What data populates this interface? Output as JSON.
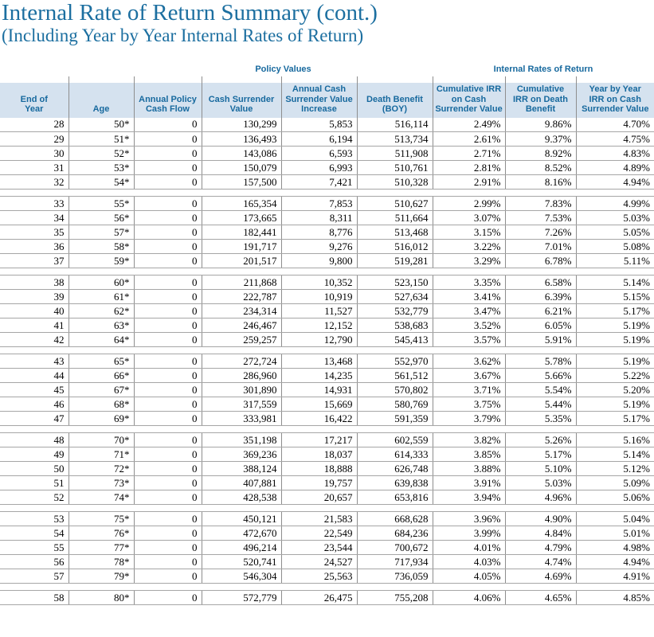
{
  "page": {
    "title": "Internal Rate of Return Summary (cont.)",
    "subtitle": "(Including Year by Year Internal Rates of Return)"
  },
  "colors": {
    "accent_blue": "#1c6fa0",
    "header_text_blue": "#17699e",
    "header_background": "#d5e2ef",
    "grid_line_gray": "#a6a6a6"
  },
  "table": {
    "group_headers": {
      "policy_values": "Policy Values",
      "internal_rates_of_return": "Internal Rates of Return"
    },
    "columns": [
      "End of\nYear",
      "Age",
      "Annual Policy\nCash Flow",
      "Cash Surrender\nValue",
      "Annual Cash\nSurrender Value\nIncrease",
      "Death Benefit\n(BOY)",
      "Cumulative IRR\non Cash\nSurrender Value",
      "Cumulative\nIRR on Death\nBenefit",
      "Year by Year\nIRR on Cash\nSurrender Value"
    ],
    "groups": [
      {
        "rows": [
          [
            "28",
            "50*",
            "0",
            "130,299",
            "5,853",
            "516,114",
            "2.49%",
            "9.86%",
            "4.70%"
          ],
          [
            "29",
            "51*",
            "0",
            "136,493",
            "6,194",
            "513,734",
            "2.61%",
            "9.37%",
            "4.75%"
          ],
          [
            "30",
            "52*",
            "0",
            "143,086",
            "6,593",
            "511,908",
            "2.71%",
            "8.92%",
            "4.83%"
          ],
          [
            "31",
            "53*",
            "0",
            "150,079",
            "6,993",
            "510,761",
            "2.81%",
            "8.52%",
            "4.89%"
          ],
          [
            "32",
            "54*",
            "0",
            "157,500",
            "7,421",
            "510,328",
            "2.91%",
            "8.16%",
            "4.94%"
          ]
        ]
      },
      {
        "rows": [
          [
            "33",
            "55*",
            "0",
            "165,354",
            "7,853",
            "510,627",
            "2.99%",
            "7.83%",
            "4.99%"
          ],
          [
            "34",
            "56*",
            "0",
            "173,665",
            "8,311",
            "511,664",
            "3.07%",
            "7.53%",
            "5.03%"
          ],
          [
            "35",
            "57*",
            "0",
            "182,441",
            "8,776",
            "513,468",
            "3.15%",
            "7.26%",
            "5.05%"
          ],
          [
            "36",
            "58*",
            "0",
            "191,717",
            "9,276",
            "516,012",
            "3.22%",
            "7.01%",
            "5.08%"
          ],
          [
            "37",
            "59*",
            "0",
            "201,517",
            "9,800",
            "519,281",
            "3.29%",
            "6.78%",
            "5.11%"
          ]
        ]
      },
      {
        "rows": [
          [
            "38",
            "60*",
            "0",
            "211,868",
            "10,352",
            "523,150",
            "3.35%",
            "6.58%",
            "5.14%"
          ],
          [
            "39",
            "61*",
            "0",
            "222,787",
            "10,919",
            "527,634",
            "3.41%",
            "6.39%",
            "5.15%"
          ],
          [
            "40",
            "62*",
            "0",
            "234,314",
            "11,527",
            "532,779",
            "3.47%",
            "6.21%",
            "5.17%"
          ],
          [
            "41",
            "63*",
            "0",
            "246,467",
            "12,152",
            "538,683",
            "3.52%",
            "6.05%",
            "5.19%"
          ],
          [
            "42",
            "64*",
            "0",
            "259,257",
            "12,790",
            "545,413",
            "3.57%",
            "5.91%",
            "5.19%"
          ]
        ]
      },
      {
        "rows": [
          [
            "43",
            "65*",
            "0",
            "272,724",
            "13,468",
            "552,970",
            "3.62%",
            "5.78%",
            "5.19%"
          ],
          [
            "44",
            "66*",
            "0",
            "286,960",
            "14,235",
            "561,512",
            "3.67%",
            "5.66%",
            "5.22%"
          ],
          [
            "45",
            "67*",
            "0",
            "301,890",
            "14,931",
            "570,802",
            "3.71%",
            "5.54%",
            "5.20%"
          ],
          [
            "46",
            "68*",
            "0",
            "317,559",
            "15,669",
            "580,769",
            "3.75%",
            "5.44%",
            "5.19%"
          ],
          [
            "47",
            "69*",
            "0",
            "333,981",
            "16,422",
            "591,359",
            "3.79%",
            "5.35%",
            "5.17%"
          ]
        ]
      },
      {
        "rows": [
          [
            "48",
            "70*",
            "0",
            "351,198",
            "17,217",
            "602,559",
            "3.82%",
            "5.26%",
            "5.16%"
          ],
          [
            "49",
            "71*",
            "0",
            "369,236",
            "18,037",
            "614,333",
            "3.85%",
            "5.17%",
            "5.14%"
          ],
          [
            "50",
            "72*",
            "0",
            "388,124",
            "18,888",
            "626,748",
            "3.88%",
            "5.10%",
            "5.12%"
          ],
          [
            "51",
            "73*",
            "0",
            "407,881",
            "19,757",
            "639,838",
            "3.91%",
            "5.03%",
            "5.09%"
          ],
          [
            "52",
            "74*",
            "0",
            "428,538",
            "20,657",
            "653,816",
            "3.94%",
            "4.96%",
            "5.06%"
          ]
        ]
      },
      {
        "rows": [
          [
            "53",
            "75*",
            "0",
            "450,121",
            "21,583",
            "668,628",
            "3.96%",
            "4.90%",
            "5.04%"
          ],
          [
            "54",
            "76*",
            "0",
            "472,670",
            "22,549",
            "684,236",
            "3.99%",
            "4.84%",
            "5.01%"
          ],
          [
            "55",
            "77*",
            "0",
            "496,214",
            "23,544",
            "700,672",
            "4.01%",
            "4.79%",
            "4.98%"
          ],
          [
            "56",
            "78*",
            "0",
            "520,741",
            "24,527",
            "717,934",
            "4.03%",
            "4.74%",
            "4.94%"
          ],
          [
            "57",
            "79*",
            "0",
            "546,304",
            "25,563",
            "736,059",
            "4.05%",
            "4.69%",
            "4.91%"
          ]
        ]
      },
      {
        "rows": [
          [
            "58",
            "80*",
            "0",
            "572,779",
            "26,475",
            "755,208",
            "4.06%",
            "4.65%",
            "4.85%"
          ]
        ]
      }
    ]
  }
}
